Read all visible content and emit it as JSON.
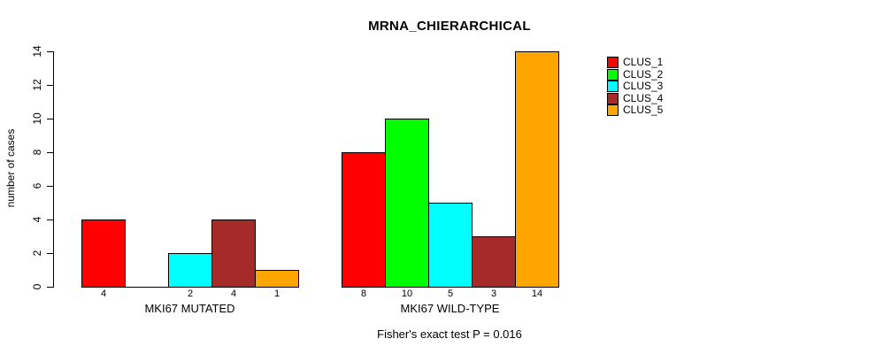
{
  "chart_data": {
    "type": "bar",
    "title": "MRNA_CHIERARCHICAL",
    "ylabel": "number of cases",
    "xlabel": "",
    "ylim": [
      0,
      14
    ],
    "yticks": [
      0,
      2,
      4,
      6,
      8,
      10,
      12,
      14
    ],
    "grid": false,
    "legend_position": "right",
    "categories": [
      "MKI67 MUTATED",
      "MKI67 WILD-TYPE"
    ],
    "series": [
      {
        "name": "CLUS_1",
        "color": "#FF0000",
        "values": [
          4,
          8
        ]
      },
      {
        "name": "CLUS_2",
        "color": "#00FF00",
        "values": [
          0,
          10
        ]
      },
      {
        "name": "CLUS_3",
        "color": "#00FFFF",
        "values": [
          2,
          5
        ]
      },
      {
        "name": "CLUS_4",
        "color": "#A52A2A",
        "values": [
          4,
          3
        ]
      },
      {
        "name": "CLUS_5",
        "color": "#FFA500",
        "values": [
          1,
          14
        ]
      }
    ],
    "bar_labels": [
      [
        "4",
        "",
        "2",
        "4",
        "1"
      ],
      [
        "8",
        "10",
        "5",
        "3",
        "14"
      ]
    ],
    "annotation": "Fisher's exact test P = 0.016"
  }
}
